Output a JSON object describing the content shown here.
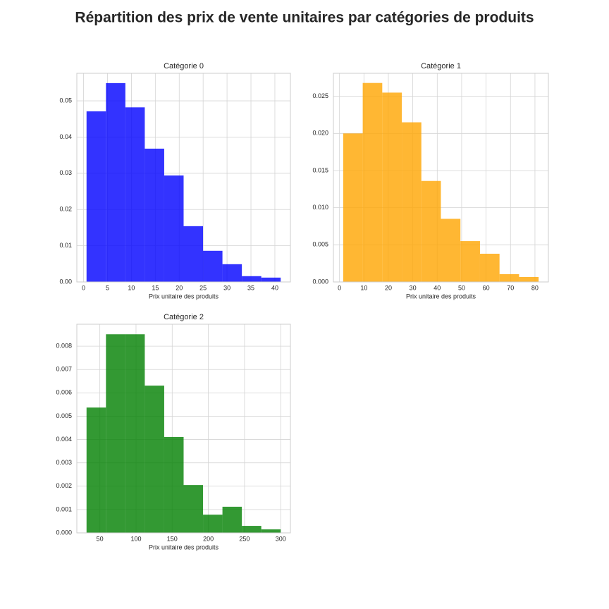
{
  "title": "Répartition des prix de vente unitaires par catégories de produits",
  "chart_data": [
    {
      "type": "histogram",
      "title": "Catégorie 0",
      "xlabel": "Prix unitaire des produits",
      "color": "#0000ff",
      "alpha": 0.8,
      "grid": true,
      "bins": [
        0.62,
        4.68,
        8.74,
        12.8,
        16.86,
        20.92,
        24.98,
        29.04,
        33.1,
        37.16,
        41.22
      ],
      "values": [
        0.0471,
        0.0549,
        0.0482,
        0.0368,
        0.0294,
        0.0154,
        0.0086,
        0.0049,
        0.0016,
        0.0012
      ],
      "xlim": [
        -1.41,
        43.25
      ],
      "xticks": [
        0,
        5,
        10,
        15,
        20,
        25,
        30,
        35,
        40
      ],
      "ylim": [
        0,
        0.0576
      ],
      "yticks": [
        {
          "value": 0,
          "label": "0.00"
        },
        {
          "value": 0.01,
          "label": "0.01"
        },
        {
          "value": 0.02,
          "label": "0.02"
        },
        {
          "value": 0.03,
          "label": "0.03"
        },
        {
          "value": 0.04,
          "label": "0.04"
        },
        {
          "value": 0.05,
          "label": "0.05"
        }
      ]
    },
    {
      "type": "histogram",
      "title": "Catégorie 1",
      "xlabel": "Prix unitaire des produits",
      "color": "orange",
      "alpha": 0.8,
      "grid": true,
      "bins": [
        1.5,
        9.5,
        17.5,
        25.5,
        33.5,
        41.5,
        49.5,
        57.5,
        65.5,
        73.5,
        81.5
      ],
      "values": [
        0.02,
        0.0268,
        0.0255,
        0.0215,
        0.0136,
        0.0085,
        0.0055,
        0.0038,
        0.00105,
        0.00067
      ],
      "xlim": [
        -2.5,
        85.5
      ],
      "xticks": [
        0,
        10,
        20,
        30,
        40,
        50,
        60,
        70,
        80
      ],
      "ylim": [
        0,
        0.0281
      ],
      "yticks": [
        {
          "value": 0,
          "label": "0.000"
        },
        {
          "value": 0.005,
          "label": "0.005"
        },
        {
          "value": 0.01,
          "label": "0.010"
        },
        {
          "value": 0.015,
          "label": "0.015"
        },
        {
          "value": 0.02,
          "label": "0.020"
        },
        {
          "value": 0.025,
          "label": "0.025"
        }
      ]
    },
    {
      "type": "histogram",
      "title": "Catégorie 2",
      "xlabel": "Prix unitaire des produits",
      "color": "green",
      "alpha": 0.8,
      "grid": true,
      "bins": [
        31.6,
        58.44,
        85.28,
        112.12,
        138.96,
        165.8,
        192.64,
        219.48,
        246.32,
        273.16,
        300.0
      ],
      "values": [
        0.00537,
        0.00851,
        0.00851,
        0.00631,
        0.00411,
        0.00205,
        0.00078,
        0.00112,
        0.0003,
        0.00015
      ],
      "xlim": [
        18.18,
        313.42
      ],
      "xticks": [
        50,
        100,
        150,
        200,
        250,
        300
      ],
      "ylim": [
        0,
        0.00894
      ],
      "yticks": [
        {
          "value": 0,
          "label": "0.000"
        },
        {
          "value": 0.001,
          "label": "0.001"
        },
        {
          "value": 0.002,
          "label": "0.002"
        },
        {
          "value": 0.003,
          "label": "0.003"
        },
        {
          "value": 0.004,
          "label": "0.004"
        },
        {
          "value": 0.005,
          "label": "0.005"
        },
        {
          "value": 0.006,
          "label": "0.006"
        },
        {
          "value": 0.007,
          "label": "0.007"
        },
        {
          "value": 0.008,
          "label": "0.008"
        }
      ]
    }
  ]
}
